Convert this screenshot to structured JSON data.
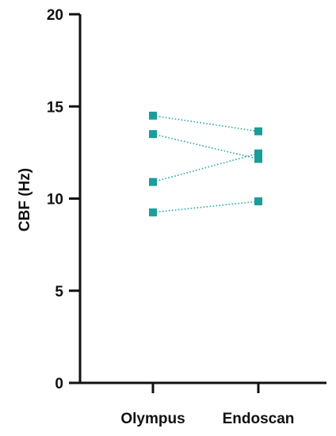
{
  "chart_data": {
    "type": "scatter",
    "title": "",
    "xlabel": "",
    "ylabel": "CBF (Hz)",
    "categories": [
      "Olympus",
      "Endoscan"
    ],
    "ylim": [
      0,
      20
    ],
    "yticks": [
      "0",
      "5",
      "10",
      "15",
      "20"
    ],
    "grid": false,
    "legend": "none",
    "marker_color": "#1a9e9a",
    "line_color": "#2aa8a4",
    "line_style": "dotted",
    "pairs": [
      {
        "Olympus": 14.5,
        "Endoscan": 13.65
      },
      {
        "Olympus": 13.5,
        "Endoscan": 12.15
      },
      {
        "Olympus": 10.9,
        "Endoscan": 12.45
      },
      {
        "Olympus": 9.25,
        "Endoscan": 9.85
      }
    ]
  }
}
